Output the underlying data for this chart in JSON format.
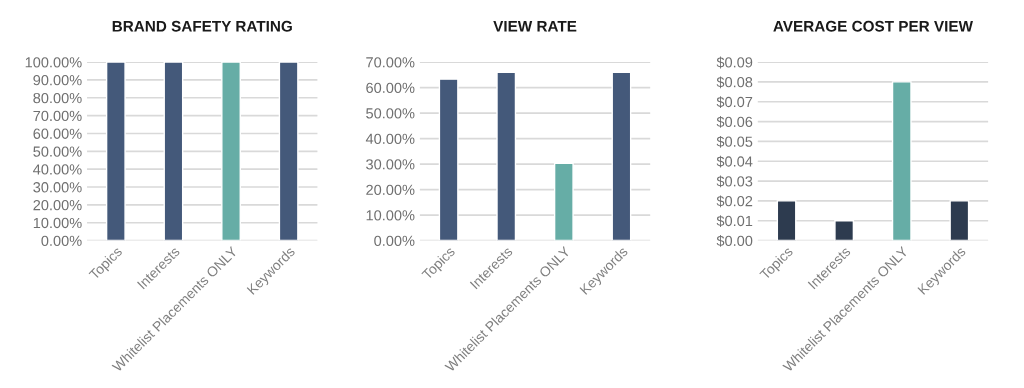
{
  "chart_data": [
    {
      "type": "bar",
      "title": "BRAND SAFETY RATING",
      "categories": [
        "Topics",
        "Interests",
        "Whitelist Placements ONLY",
        "Keywords"
      ],
      "values": [
        100,
        100,
        100,
        100
      ],
      "colors": [
        "#44597a",
        "#44597a",
        "#66ada6",
        "#44597a"
      ],
      "ylim": [
        0,
        100
      ],
      "yticks": [
        {
          "value": 0,
          "label": "0.00%"
        },
        {
          "value": 10,
          "label": "10.00%"
        },
        {
          "value": 20,
          "label": "20.00%"
        },
        {
          "value": 30,
          "label": "30.00%"
        },
        {
          "value": 40,
          "label": "40.00%"
        },
        {
          "value": 50,
          "label": "50.00%"
        },
        {
          "value": 60,
          "label": "60.00%"
        },
        {
          "value": 70,
          "label": "70.00%"
        },
        {
          "value": 80,
          "label": "80.00%"
        },
        {
          "value": 90,
          "label": "90.00%"
        },
        {
          "value": 100,
          "label": "100.00%"
        }
      ],
      "grid": "y"
    },
    {
      "type": "bar",
      "title": "VIEW RATE",
      "categories": [
        "Topics",
        "Interests",
        "Whitelist Placements ONLY",
        "Keywords"
      ],
      "values": [
        63.3,
        66,
        30.3,
        66
      ],
      "colors": [
        "#44597a",
        "#44597a",
        "#66ada6",
        "#44597a"
      ],
      "ylim": [
        0,
        70
      ],
      "yticks": [
        {
          "value": 0,
          "label": "0.00%"
        },
        {
          "value": 10,
          "label": "10.00%"
        },
        {
          "value": 20,
          "label": "20.00%"
        },
        {
          "value": 30,
          "label": "30.00%"
        },
        {
          "value": 40,
          "label": "40.00%"
        },
        {
          "value": 50,
          "label": "50.00%"
        },
        {
          "value": 60,
          "label": "60.00%"
        },
        {
          "value": 70,
          "label": "70.00%"
        }
      ],
      "grid": "y"
    },
    {
      "type": "bar",
      "title": "AVERAGE COST PER VIEW",
      "categories": [
        "Topics",
        "Interests",
        "Whitelist Placements ONLY",
        "Keywords"
      ],
      "values": [
        0.02,
        0.01,
        0.08,
        0.02
      ],
      "colors": [
        "#2d3b4f",
        "#2d3b4f",
        "#66ada6",
        "#2d3b4f"
      ],
      "ylim": [
        0,
        0.09
      ],
      "yticks": [
        {
          "value": 0,
          "label": "$0.00"
        },
        {
          "value": 0.01,
          "label": "$0.01"
        },
        {
          "value": 0.02,
          "label": "$0.02"
        },
        {
          "value": 0.03,
          "label": "$0.03"
        },
        {
          "value": 0.04,
          "label": "$0.04"
        },
        {
          "value": 0.05,
          "label": "$0.05"
        },
        {
          "value": 0.06,
          "label": "$0.06"
        },
        {
          "value": 0.07,
          "label": "$0.07"
        },
        {
          "value": 0.08,
          "label": "$0.08"
        },
        {
          "value": 0.09,
          "label": "$0.09"
        }
      ],
      "grid": "y"
    }
  ]
}
